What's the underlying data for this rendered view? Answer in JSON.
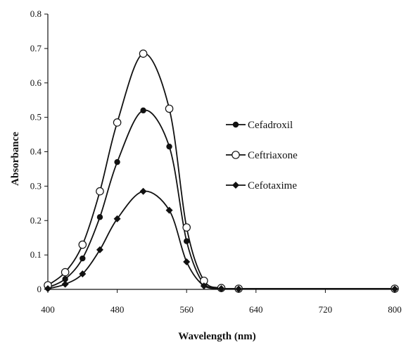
{
  "chart_data": {
    "type": "line",
    "xlabel": "Wavelength (nm)",
    "ylabel": "Absorbance",
    "xlim": [
      400,
      800
    ],
    "ylim": [
      0,
      0.8
    ],
    "x_ticks": [
      "400",
      "480",
      "560",
      "640",
      "720",
      "800"
    ],
    "y_ticks": [
      "0",
      "0.1",
      "0.2",
      "0.3",
      "0.4",
      "0.5",
      "0.6",
      "0.7",
      "0.8"
    ],
    "grid": false,
    "legend_position": "right",
    "series": [
      {
        "name": "Cefadroxil",
        "marker": "filled-circle",
        "color": "#111111",
        "x": [
          400,
          420,
          440,
          460,
          480,
          510,
          540,
          560,
          580,
          600,
          620,
          800
        ],
        "y": [
          0.005,
          0.03,
          0.09,
          0.21,
          0.37,
          0.52,
          0.415,
          0.14,
          0.015,
          0.003,
          0.002,
          0.002
        ]
      },
      {
        "name": "Ceftriaxone",
        "marker": "open-circle",
        "color": "#111111",
        "x": [
          400,
          420,
          440,
          460,
          480,
          510,
          540,
          560,
          580,
          600,
          620,
          800
        ],
        "y": [
          0.012,
          0.05,
          0.13,
          0.285,
          0.485,
          0.685,
          0.525,
          0.18,
          0.025,
          0.004,
          0.002,
          0.002
        ]
      },
      {
        "name": "Cefotaxime",
        "marker": "filled-diamond",
        "color": "#111111",
        "x": [
          400,
          420,
          440,
          460,
          480,
          510,
          540,
          560,
          580,
          600,
          620,
          800
        ],
        "y": [
          0.002,
          0.015,
          0.045,
          0.115,
          0.205,
          0.285,
          0.23,
          0.08,
          0.01,
          0.002,
          0.001,
          0.001
        ]
      }
    ]
  }
}
